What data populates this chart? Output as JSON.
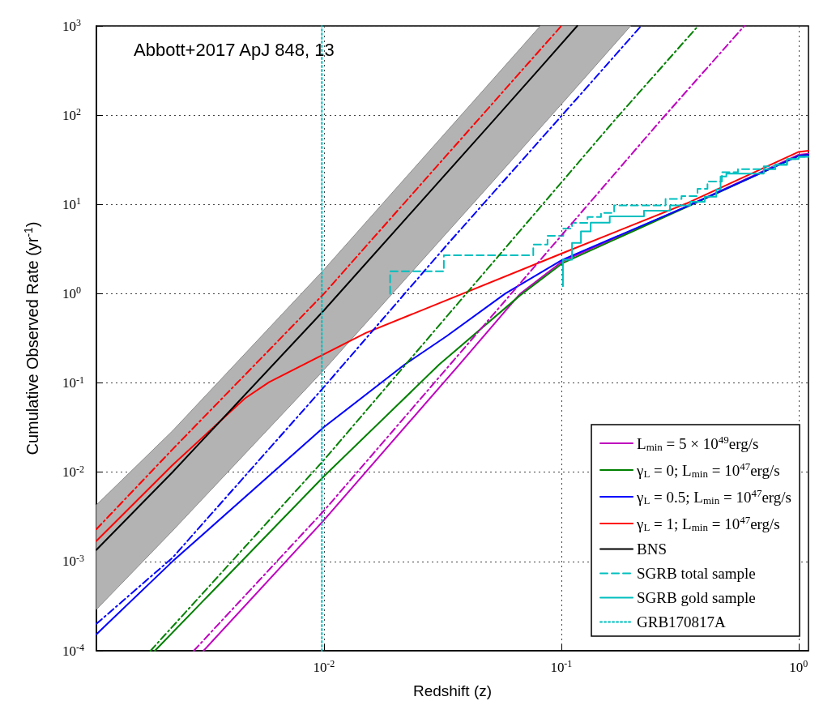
{
  "chart_data": {
    "type": "line",
    "xlabel": "Redshift (z)",
    "ylabel": "Cumulative Observed Rate (yr$^{-1}$)",
    "annotations": [
      "Abbott+2017 ApJ 848, 13"
    ],
    "log": "xy",
    "grid": true,
    "legend": "bottom right",
    "marker": "none",
    "xlim": [
      0.0011,
      1.1
    ],
    "xticks": [
      {
        "value": 0.01,
        "label": "10$^{-2}$"
      },
      {
        "value": 0.1,
        "label": "10$^{-1}$"
      },
      {
        "value": 1,
        "label": "10$^{0}$"
      }
    ],
    "ylim": [
      0.0001,
      1000
    ],
    "yticks": [
      {
        "value": 0.0001,
        "label": "10$^{-4}$"
      },
      {
        "value": 0.001,
        "label": "10$^{-3}$"
      },
      {
        "value": 0.01,
        "label": "10$^{-2}$"
      },
      {
        "value": 0.1,
        "label": "10$^{-1}$"
      },
      {
        "value": 1,
        "label": "10$^{0}$"
      },
      {
        "value": 10,
        "label": "10$^{1}$"
      },
      {
        "value": 100,
        "label": "10$^{2}$"
      },
      {
        "value": 1000,
        "label": "10$^{3}$"
      }
    ],
    "series": [
      {
        "name": "L$_{min}$ = 5 × 10$^{49}$erg/s",
        "color": "#bf00bf",
        "line_style": "solid",
        "x": [
          0.00311,
          0.01,
          0.0372,
          0.0671,
          0.101,
          0.344,
          1.0,
          1.1
        ],
        "values": [
          0.0001,
          0.0029,
          0.161,
          1.0,
          2.3,
          9.7,
          36,
          37
        ]
      },
      {
        "name": "γ$_{L}$ = 0; L$_{min}$ = 10$^{47}$erg/s",
        "color": "#008000",
        "line_style": "solid",
        "x": [
          0.00194,
          0.01,
          0.0306,
          0.0671,
          0.101,
          0.344,
          1.0,
          1.1
        ],
        "values": [
          0.0001,
          0.009,
          0.161,
          0.96,
          2.19,
          9.6,
          35,
          36
        ]
      },
      {
        "name": "γ$_{L}$ = 0.5; L$_{min}$ = 10$^{47}$erg/s",
        "color": "#0000ff",
        "line_style": "solid",
        "x": [
          0.0011,
          0.0023,
          0.01,
          0.0219,
          0.0329,
          0.058,
          0.101,
          0.344,
          1.0,
          1.1
        ],
        "values": [
          0.000153,
          0.001,
          0.032,
          0.161,
          0.335,
          1.0,
          2.4,
          9.7,
          35,
          36
        ]
      },
      {
        "name": "γ$_{L}$ = 1; L$_{min}$ = 10$^{47}$erg/s",
        "color": "#ff0000",
        "line_style": "solid",
        "x": [
          0.0011,
          0.0023,
          0.00464,
          0.00587,
          0.01,
          0.015,
          0.101,
          0.344,
          1.0,
          1.1
        ],
        "values": [
          0.0017,
          0.012,
          0.067,
          0.102,
          0.21,
          0.363,
          2.84,
          10.5,
          38.8,
          40
        ]
      },
      {
        "name": "BNS",
        "color": "#000000",
        "line_style": "solid",
        "x": [
          0.0011,
          0.0023,
          0.01,
          0.0514,
          0.0816,
          0.1167,
          0.196
        ],
        "values": [
          0.00135,
          0.01,
          0.65,
          85,
          340,
          1000,
          null
        ],
        "upper": [
          0.0043,
          0.029,
          1.86,
          250,
          1000,
          1000,
          1000
        ],
        "lower": [
          0.00029,
          0.0022,
          0.14,
          18,
          72,
          210,
          1000
        ]
      },
      {
        "name": "SGRB total sample",
        "type": "step",
        "color": "#00bfbf",
        "line_style": "dashed",
        "x": [
          0.019,
          0.019,
          0.032,
          0.0762,
          0.0875,
          0.102,
          0.111,
          0.129,
          0.147,
          0.167,
          0.275,
          0.321,
          0.375,
          0.413,
          0.475,
          0.555,
          0.713,
          0.798,
          0.893,
          1.0,
          1.1
        ],
        "values": [
          1.0,
          1.78,
          2.69,
          3.56,
          4.46,
          5.37,
          6.23,
          7.24,
          8.04,
          9.75,
          11.5,
          12.4,
          15.0,
          18.1,
          23.0,
          24.8,
          26.7,
          28.2,
          32.2,
          34.2,
          34.2
        ]
      },
      {
        "name": "SGRB gold sample",
        "type": "step",
        "color": "#00bfbf",
        "line_style": "solid",
        "x": [
          0.1016,
          0.1016,
          0.111,
          0.121,
          0.133,
          0.16,
          0.223,
          0.287,
          0.349,
          0.402,
          0.45,
          0.469,
          0.496,
          0.713,
          0.798,
          0.893,
          1.0,
          1.1
        ],
        "values": [
          1.21,
          2.4,
          3.7,
          4.99,
          6.24,
          7.35,
          8.53,
          9.75,
          10.7,
          12.2,
          14.7,
          20.6,
          22.2,
          24.8,
          27.7,
          32.2,
          34.2,
          34.2
        ]
      },
      {
        "name": "GRB170817A",
        "color": "#00bfbf",
        "line_style": "dotted",
        "x": [
          0.0098,
          0.0098
        ],
        "values": [
          0.0001,
          1000
        ]
      },
      {
        "color": "#bf00bf",
        "line_style": "dashdot",
        "x": [
          0.00283,
          0.01,
          0.26,
          0.59
        ],
        "values": [
          0.0001,
          0.0037,
          85,
          1000
        ]
      },
      {
        "color": "#008000",
        "line_style": "dashdot",
        "x": [
          0.00186,
          0.01,
          0.166,
          0.377
        ],
        "values": [
          0.0001,
          0.0137,
          85,
          1000
        ]
      },
      {
        "color": "#0000ff",
        "line_style": "dashdot",
        "x": [
          0.0011,
          0.0023,
          0.01,
          0.0329,
          0.0955,
          0.217
        ],
        "values": [
          0.0002,
          0.0011,
          0.09,
          3.5,
          85,
          1000
        ]
      },
      {
        "color": "#ff0000",
        "line_style": "dashdot",
        "x": [
          0.0011,
          0.0023,
          0.01,
          0.1
        ],
        "values": [
          0.0023,
          0.018,
          1.0,
          1000
        ]
      }
    ]
  }
}
